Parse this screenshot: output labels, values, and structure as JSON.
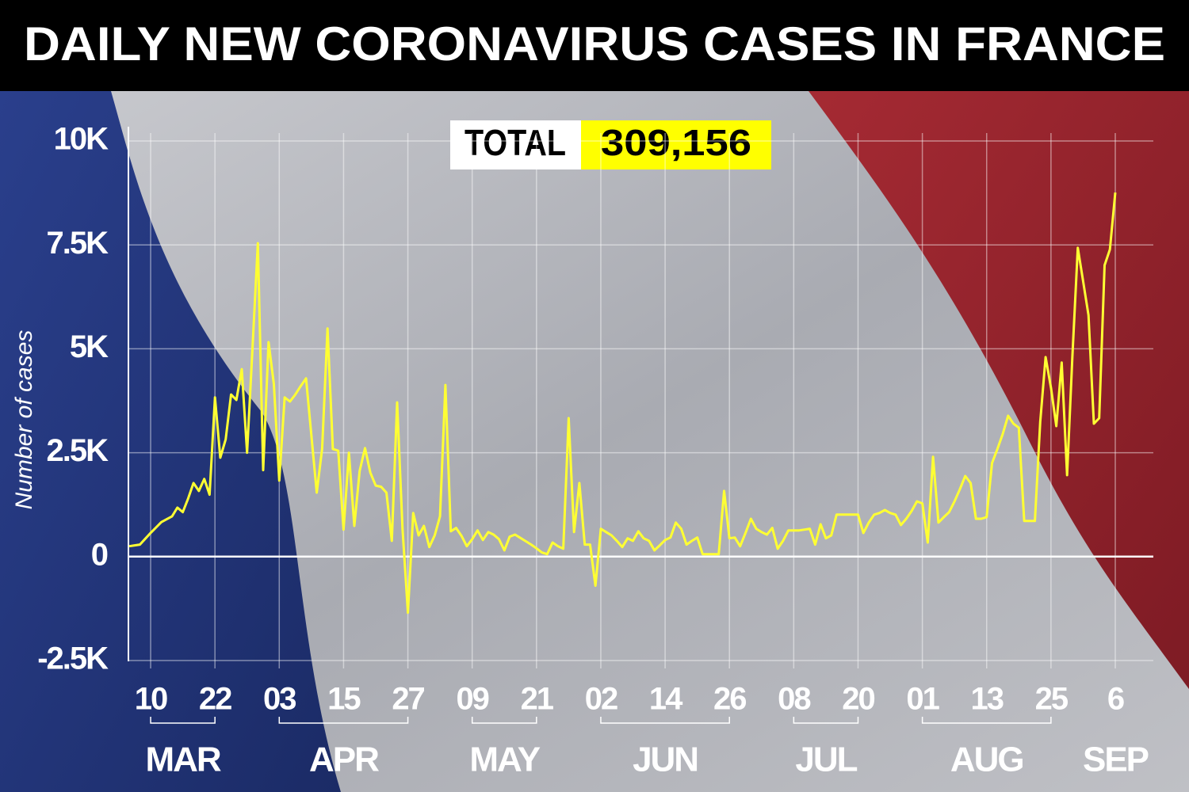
{
  "chart_data": {
    "type": "line",
    "title": "DAILY NEW CORONAVIRUS CASES IN FRANCE",
    "total_label": "TOTAL",
    "total_value": "309,156",
    "y_label": "Number of cases",
    "color": "#ffff33",
    "categories": [
      null,
      null,
      null,
      null,
      "10",
      null,
      null,
      null,
      null,
      null,
      null,
      null,
      null,
      null,
      null,
      null,
      "22",
      null,
      null,
      null,
      null,
      null,
      null,
      null,
      null,
      null,
      null,
      null,
      "03",
      null,
      null,
      null,
      null,
      null,
      null,
      null,
      null,
      null,
      null,
      null,
      "15",
      null,
      null,
      null,
      null,
      null,
      null,
      null,
      null,
      null,
      null,
      null,
      "27",
      null,
      null,
      null,
      null,
      null,
      null,
      null,
      null,
      null,
      null,
      null,
      "09",
      null,
      null,
      null,
      null,
      null,
      null,
      null,
      null,
      null,
      null,
      null,
      "21",
      null,
      null,
      null,
      null,
      null,
      null,
      null,
      null,
      null,
      null,
      null,
      "02",
      null,
      null,
      null,
      null,
      null,
      null,
      null,
      null,
      null,
      null,
      null,
      "14",
      null,
      null,
      null,
      null,
      null,
      null,
      null,
      null,
      null,
      null,
      null,
      "26",
      null,
      null,
      null,
      null,
      null,
      null,
      null,
      null,
      null,
      null,
      null,
      "08",
      null,
      null,
      null,
      null,
      null,
      null,
      null,
      null,
      null,
      null,
      null,
      "20",
      null,
      null,
      null,
      null,
      null,
      null,
      null,
      null,
      null,
      null,
      null,
      "01",
      null,
      null,
      null,
      null,
      null,
      null,
      null,
      null,
      null,
      null,
      null,
      "13",
      null,
      null,
      null,
      null,
      null,
      null,
      null,
      null,
      null,
      null,
      null,
      "25",
      null,
      null,
      null,
      null,
      null,
      null,
      null,
      null,
      null,
      null,
      null,
      "6"
    ],
    "months": [
      "MAR",
      "APR",
      "MAY",
      "JUN",
      "JUL",
      "AUG",
      "SEP"
    ],
    "values": [
      250,
      270,
      290,
      430,
      570,
      700,
      830,
      900,
      970,
      1180,
      1070,
      1400,
      1770,
      1580,
      1870,
      1490,
      3830,
      2380,
      2820,
      3900,
      3770,
      4510,
      2500,
      5000,
      7540,
      2080,
      5160,
      4150,
      1830,
      3830,
      3730,
      3900,
      4100,
      4290,
      2900,
      1540,
      2600,
      5490,
      2590,
      2550,
      650,
      2500,
      740,
      2060,
      2610,
      2020,
      1710,
      1680,
      1540,
      380,
      3710,
      670,
      -1350,
      1050,
      510,
      740,
      230,
      510,
      970,
      4130,
      610,
      690,
      500,
      250,
      420,
      630,
      400,
      590,
      530,
      420,
      150,
      480,
      530,
      450,
      370,
      290,
      200,
      100,
      60,
      340,
      250,
      190,
      3330,
      590,
      1770,
      290,
      290,
      -700,
      670,
      590,
      510,
      380,
      230,
      440,
      380,
      610,
      440,
      380,
      150,
      270,
      400,
      460,
      820,
      670,
      290,
      380,
      460,
      60,
      60,
      60,
      60,
      1580,
      440,
      460,
      250,
      570,
      910,
      670,
      590,
      530,
      690,
      190,
      380,
      630,
      630,
      630,
      650,
      670,
      290,
      780,
      440,
      510,
      1010,
      1010,
      1010,
      1010,
      1010,
      570,
      820,
      1010,
      1050,
      1120,
      1050,
      1010,
      760,
      910,
      1100,
      1330,
      1280,
      340,
      2400,
      820,
      950,
      1070,
      1330,
      1620,
      1940,
      1770,
      910,
      910,
      950,
      2250,
      2590,
      2950,
      3390,
      3200,
      3100,
      860,
      860,
      860,
      3240,
      4800,
      4060,
      3140,
      4670,
      1960,
      4820,
      7430,
      6630,
      5810,
      3200,
      3330,
      7010,
      7390,
      8760
    ],
    "ylim": [
      -2500,
      10000
    ],
    "yticks": [
      {
        "value": -2500,
        "label": "-2.5K"
      },
      0,
      {
        "value": 2500,
        "label": "2.5K"
      },
      {
        "value": 5000,
        "label": "5K"
      },
      {
        "value": 7500,
        "label": "7.5K"
      },
      {
        "value": 10000,
        "label": "10K"
      }
    ],
    "grid": true
  }
}
